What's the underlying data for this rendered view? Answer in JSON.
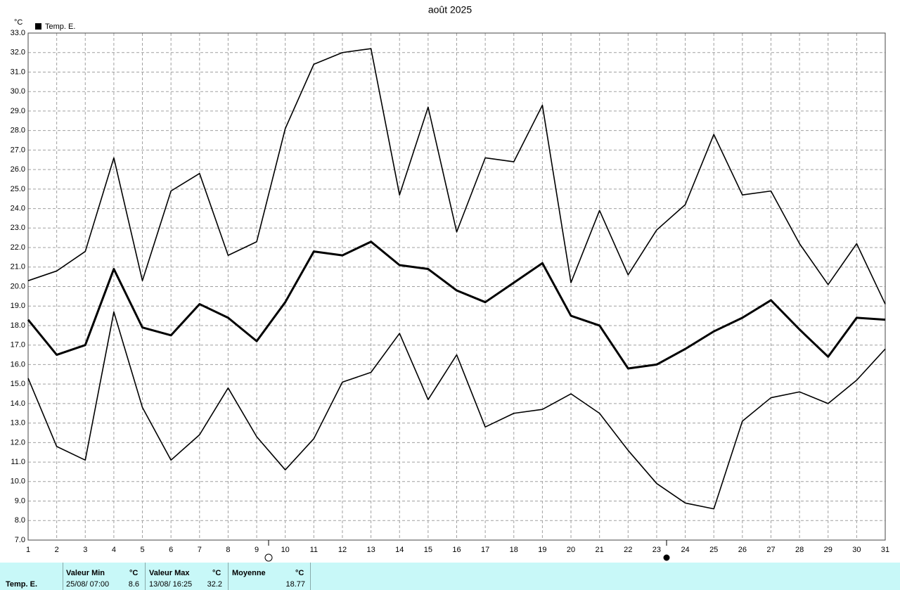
{
  "chart_data": {
    "type": "line",
    "title": "août 2025",
    "y_unit": "°C",
    "x": [
      1,
      2,
      3,
      4,
      5,
      6,
      7,
      8,
      9,
      10,
      11,
      12,
      13,
      14,
      15,
      16,
      17,
      18,
      19,
      20,
      21,
      22,
      23,
      24,
      25,
      26,
      27,
      28,
      29,
      30,
      31
    ],
    "xlim": [
      1,
      31
    ],
    "xticks": [
      1,
      2,
      3,
      4,
      5,
      6,
      7,
      8,
      9,
      10,
      11,
      12,
      13,
      14,
      15,
      16,
      17,
      18,
      19,
      20,
      21,
      22,
      23,
      24,
      25,
      26,
      27,
      28,
      29,
      30,
      31
    ],
    "ylim": [
      7,
      33
    ],
    "yticks": [
      {
        "value": 7,
        "label": "7.0"
      },
      {
        "value": 8,
        "label": "8.0"
      },
      {
        "value": 9,
        "label": "9.0"
      },
      {
        "value": 10,
        "label": "10.0"
      },
      {
        "value": 11,
        "label": "11.0"
      },
      {
        "value": 12,
        "label": "12.0"
      },
      {
        "value": 13,
        "label": "13.0"
      },
      {
        "value": 14,
        "label": "14.0"
      },
      {
        "value": 15,
        "label": "15.0"
      },
      {
        "value": 16,
        "label": "16.0"
      },
      {
        "value": 17,
        "label": "17.0"
      },
      {
        "value": 18,
        "label": "18.0"
      },
      {
        "value": 19,
        "label": "19.0"
      },
      {
        "value": 20,
        "label": "20.0"
      },
      {
        "value": 21,
        "label": "21.0"
      },
      {
        "value": 22,
        "label": "22.0"
      },
      {
        "value": 23,
        "label": "23.0"
      },
      {
        "value": 24,
        "label": "24.0"
      },
      {
        "value": 25,
        "label": "25.0"
      },
      {
        "value": 26,
        "label": "26.0"
      },
      {
        "value": 27,
        "label": "27.0"
      },
      {
        "value": 28,
        "label": "28.0"
      },
      {
        "value": 29,
        "label": "29.0"
      },
      {
        "value": 30,
        "label": "30.0"
      },
      {
        "value": 31,
        "label": "31.0"
      },
      {
        "value": 32,
        "label": "32.0"
      },
      {
        "value": 33,
        "label": "33.0"
      }
    ],
    "grid": true,
    "series": [
      {
        "color": "#000000",
        "values": [
          20.3,
          20.8,
          21.8,
          26.6,
          20.3,
          24.9,
          25.8,
          21.6,
          22.3,
          28.1,
          31.4,
          32.0,
          32.2,
          24.7,
          29.2,
          22.8,
          26.6,
          26.4,
          29.3,
          20.2,
          23.9,
          20.6,
          22.9,
          24.2,
          27.8,
          24.7,
          24.9,
          22.2,
          20.1,
          22.2,
          19.1
        ]
      },
      {
        "name": "Temp. E.",
        "color": "#000000",
        "values": [
          18.3,
          16.5,
          17.0,
          20.9,
          17.9,
          17.5,
          19.1,
          18.4,
          17.2,
          19.2,
          21.8,
          21.6,
          22.3,
          21.1,
          20.9,
          19.8,
          19.2,
          20.2,
          21.2,
          18.5,
          18.0,
          15.8,
          16.0,
          16.8,
          17.7,
          18.4,
          19.3,
          17.8,
          16.4,
          18.4,
          18.3
        ]
      },
      {
        "color": "#000000",
        "values": [
          15.3,
          11.8,
          11.1,
          18.7,
          13.8,
          11.1,
          12.4,
          14.8,
          12.3,
          10.6,
          12.2,
          15.1,
          15.6,
          17.6,
          14.2,
          16.5,
          12.8,
          13.5,
          13.7,
          14.5,
          13.5,
          11.6,
          9.9,
          8.9,
          8.6,
          13.1,
          14.3,
          14.6,
          14.0,
          15.2,
          16.8
        ]
      }
    ]
  },
  "stats_table": {
    "row_label": "Temp. E.",
    "columns": [
      {
        "header": "Valeur Min",
        "unit": "°C",
        "time": "25/08/ 07:00",
        "value": 8.6
      },
      {
        "header": "Valeur Max",
        "unit": "°C",
        "time": "13/08/ 16:25",
        "value": 32.2
      },
      {
        "header": "Moyenne",
        "unit": "°C",
        "value": 18.77
      }
    ]
  }
}
